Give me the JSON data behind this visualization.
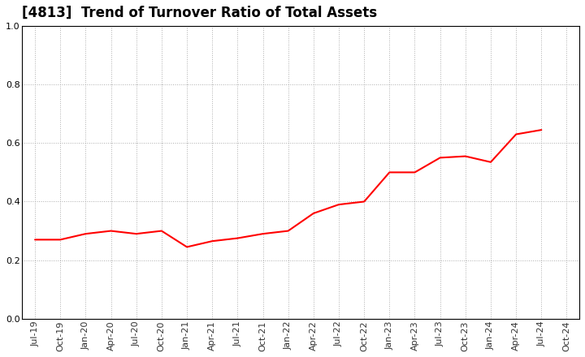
{
  "title": "[4813]  Trend of Turnover Ratio of Total Assets",
  "line_color": "#FF0000",
  "line_width": 1.5,
  "background_color": "#FFFFFF",
  "grid_color": "#999999",
  "ylim": [
    0.0,
    1.0
  ],
  "yticks": [
    0.0,
    0.2,
    0.4,
    0.6,
    0.8,
    1.0
  ],
  "x_labels": [
    "Jul-19",
    "Oct-19",
    "Jan-20",
    "Apr-20",
    "Jul-20",
    "Oct-20",
    "Jan-21",
    "Apr-21",
    "Jul-21",
    "Oct-21",
    "Jan-22",
    "Apr-22",
    "Jul-22",
    "Oct-22",
    "Jan-23",
    "Apr-23",
    "Jul-23",
    "Oct-23",
    "Jan-24",
    "Apr-24",
    "Jul-24",
    "Oct-24"
  ],
  "values": [
    0.27,
    0.27,
    0.29,
    0.3,
    0.29,
    0.3,
    0.245,
    0.265,
    0.275,
    0.29,
    0.3,
    0.36,
    0.39,
    0.4,
    0.5,
    0.5,
    0.55,
    0.555,
    0.535,
    0.63,
    0.645,
    null
  ],
  "title_fontsize": 12,
  "tick_fontsize": 8
}
